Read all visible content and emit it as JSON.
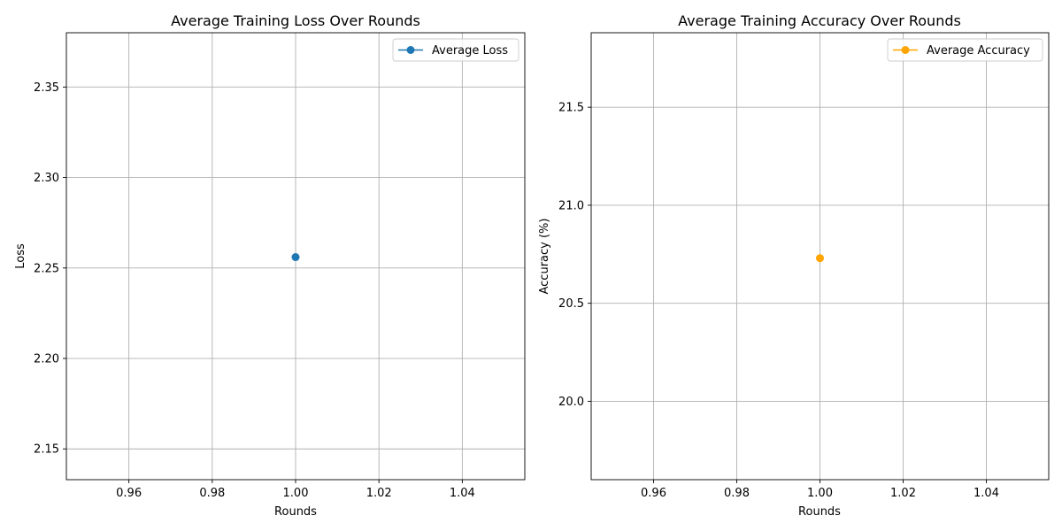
{
  "chart_data": [
    {
      "type": "line",
      "title": "Average Training Loss Over Rounds",
      "xlabel": "Rounds",
      "ylabel": "Loss",
      "xlim": [
        0.945,
        1.055
      ],
      "ylim": [
        2.133,
        2.38
      ],
      "xticks": [
        0.96,
        0.98,
        1.0,
        1.02,
        1.04
      ],
      "xtick_labels": [
        "0.96",
        "0.98",
        "1.00",
        "1.02",
        "1.04"
      ],
      "yticks": [
        2.15,
        2.2,
        2.25,
        2.3,
        2.35
      ],
      "ytick_labels": [
        "2.15",
        "2.20",
        "2.25",
        "2.30",
        "2.35"
      ],
      "grid": true,
      "legend_position": "top-right",
      "series": [
        {
          "name": "Average Loss",
          "color": "#1f77b4",
          "marker": "circle",
          "x": [
            1
          ],
          "y": [
            2.256
          ]
        }
      ]
    },
    {
      "type": "line",
      "title": "Average Training Accuracy Over Rounds",
      "xlabel": "Rounds",
      "ylabel": "Accuracy (%)",
      "xlim": [
        0.945,
        1.055
      ],
      "ylim": [
        19.6,
        21.88
      ],
      "xticks": [
        0.96,
        0.98,
        1.0,
        1.02,
        1.04
      ],
      "xtick_labels": [
        "0.96",
        "0.98",
        "1.00",
        "1.02",
        "1.04"
      ],
      "yticks": [
        20.0,
        20.5,
        21.0,
        21.5
      ],
      "ytick_labels": [
        "20.0",
        "20.5",
        "21.0",
        "21.5"
      ],
      "grid": true,
      "legend_position": "top-right",
      "series": [
        {
          "name": "Average Accuracy",
          "color": "#ffa500",
          "marker": "circle",
          "x": [
            1
          ],
          "y": [
            20.73
          ]
        }
      ]
    }
  ]
}
